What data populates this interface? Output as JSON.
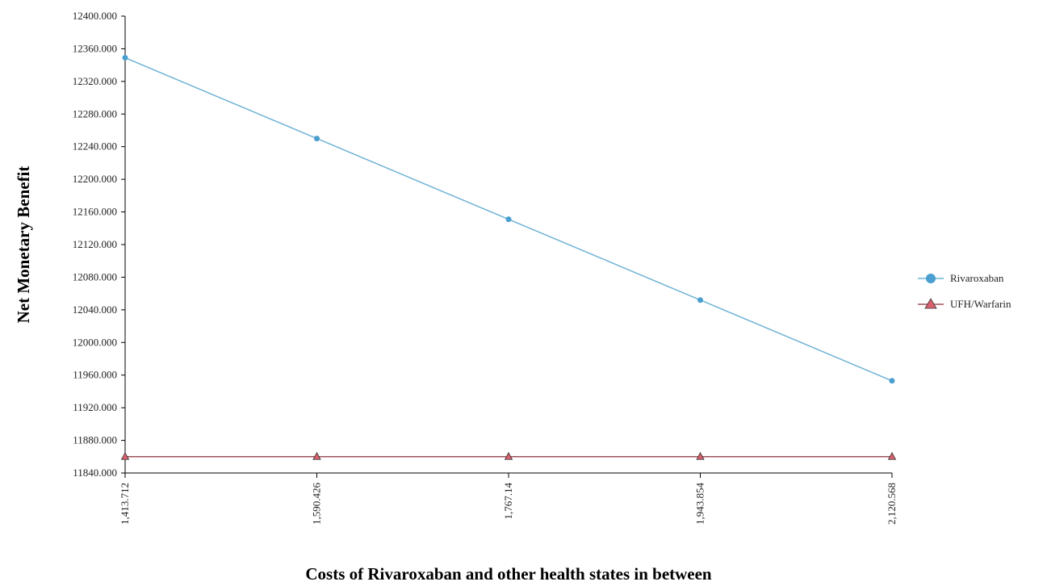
{
  "chart_data": {
    "type": "line",
    "xlabel": "Costs of Rivaroxaban and other health states in between",
    "ylabel": "Net Monetary Benefit",
    "categories": [
      "1,413.712",
      "1,590.426",
      "1,767.14",
      "1,943.854",
      "2,120.568"
    ],
    "ylim": [
      11840,
      12400
    ],
    "yticks": [
      "12400.000",
      "12360.000",
      "12320.000",
      "12280.000",
      "12240.000",
      "12200.000",
      "12160.000",
      "12120.000",
      "12080.000",
      "12040.000",
      "12000.000",
      "11960.000",
      "11920.000",
      "11880.000",
      "11840.000"
    ],
    "series": [
      {
        "name": "Rivaroxaban",
        "values": [
          12349,
          12250,
          12151,
          12052,
          11953
        ],
        "color": "#6fb3d6",
        "marker": "circle",
        "marker_color": "#4a9fd0"
      },
      {
        "name": "UFH/Warfarin",
        "values": [
          11860,
          11860,
          11860,
          11860,
          11860
        ],
        "color": "#a0525a",
        "marker": "triangle",
        "marker_color": "#d9606d"
      }
    ],
    "grid": false,
    "legend_position": "right"
  }
}
